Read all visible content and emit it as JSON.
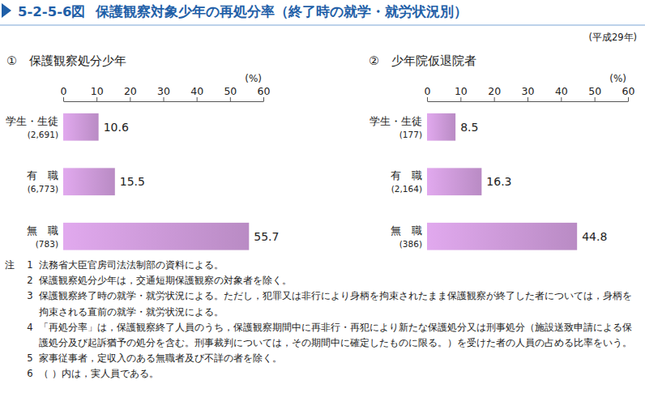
{
  "figure": {
    "number": "5-2-5-6図",
    "title": "保護観察対象少年の再処分率（終了時の就学・就労状況別）",
    "period": "(平成29年)",
    "notes_label": "注",
    "notes": [
      {
        "number": "1",
        "text": "法務省大臣官房司法法制部の資料による。"
      },
      {
        "number": "2",
        "text": "保護観察処分少年は，交通短期保護観察の対象者を除く。"
      },
      {
        "number": "3",
        "text": "保護観察終了時の就学・就労状況による。ただし，犯罪又は非行により身柄を拘束されたまま保護観察が終了した者については，身柄を拘束される直前の就学・就労状況による。"
      },
      {
        "number": "4",
        "text": "「再処分率」は，保護観察終了人員のうち，保護観察期間中に再非行・再犯により新たな保護処分又は刑事処分（施設送致申請による保護処分及び起訴猶予の処分を含む。刑事裁判については，その期間中に確定したものに限る。）を受けた者の人員の占める比率をいう。"
      },
      {
        "number": "5",
        "text": "家事従事者，定収入のある無職者及び不詳の者を除く。"
      },
      {
        "number": "6",
        "text": "（ ）内は，実人員である。"
      }
    ]
  },
  "chart_data": [
    {
      "type": "bar",
      "orientation": "horizontal",
      "title": "①　保護観察処分少年",
      "categories": [
        "学生・生徒",
        "有　職",
        "無　職"
      ],
      "count_labels": [
        "(2,691)",
        "(6,773)",
        "(783)"
      ],
      "values": [
        10.6,
        15.5,
        55.7
      ],
      "color": "#b98bc4",
      "xlabel": "(%)",
      "xlim": [
        0,
        60
      ],
      "xticks": [
        0,
        10,
        20,
        30,
        40,
        50,
        60
      ],
      "grid": false,
      "data_labels": true
    },
    {
      "type": "bar",
      "orientation": "horizontal",
      "title": "②　少年院仮退院者",
      "categories": [
        "学生・生徒",
        "有　職",
        "無　職"
      ],
      "count_labels": [
        "(177)",
        "(2,164)",
        "(386)"
      ],
      "values": [
        8.5,
        16.3,
        44.8
      ],
      "color": "#b98bc4",
      "xlabel": "(%)",
      "xlim": [
        0,
        60
      ],
      "xticks": [
        0,
        10,
        20,
        30,
        40,
        50,
        60
      ],
      "grid": false,
      "data_labels": true
    }
  ]
}
